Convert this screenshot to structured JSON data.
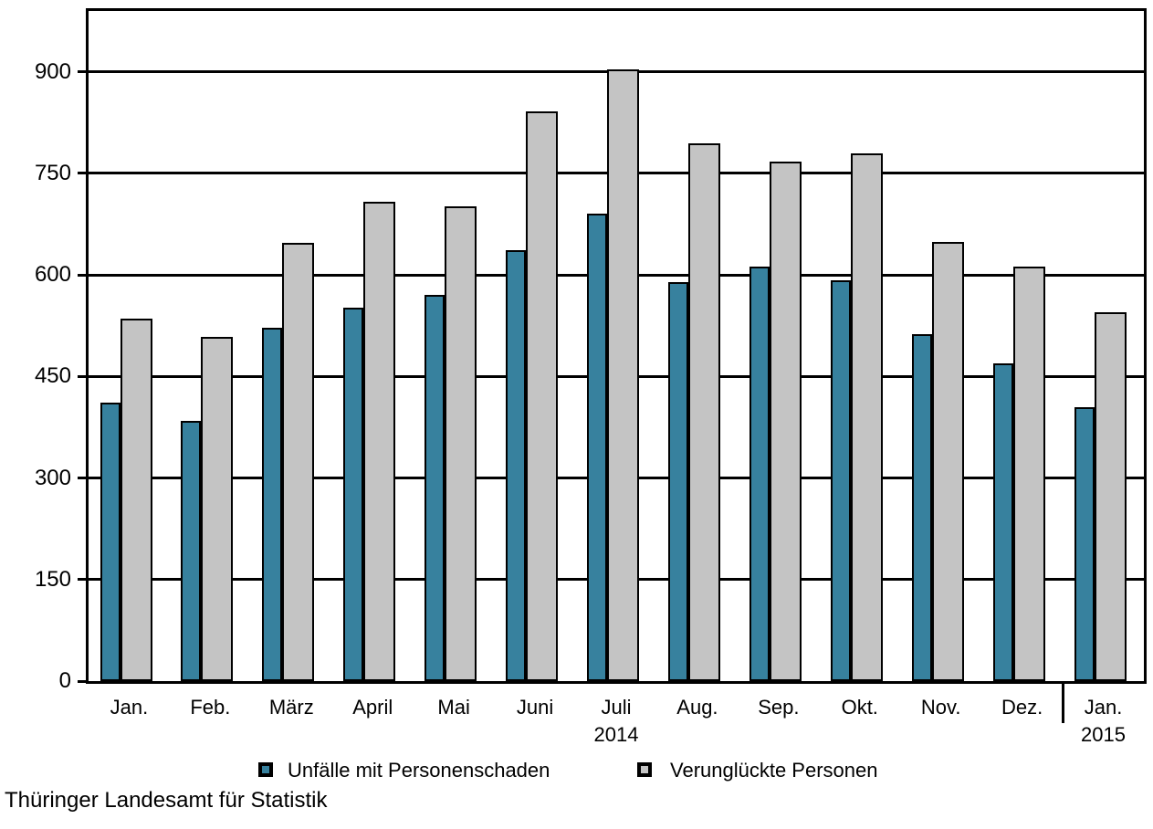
{
  "chart_data": {
    "type": "bar",
    "categories": [
      "Jan.",
      "Feb.",
      "März",
      "April",
      "Mai",
      "Juni",
      "Juli",
      "Aug.",
      "Sep.",
      "Okt.",
      "Nov.",
      "Dez.",
      "Jan."
    ],
    "year_labels": [
      {
        "index": 6,
        "label": "2014"
      },
      {
        "index": 12,
        "label": "2015"
      }
    ],
    "year_separator_after_index": 11,
    "series": [
      {
        "name": "Unfälle mit Personenschaden",
        "color": "#37819E",
        "values": [
          411,
          384,
          522,
          552,
          571,
          636,
          690,
          589,
          613,
          592,
          512,
          470,
          405
        ]
      },
      {
        "name": "Verunglückte Personen",
        "color": "#C4C4C4",
        "values": [
          535,
          508,
          648,
          708,
          702,
          842,
          904,
          794,
          768,
          779,
          649,
          613,
          545
        ]
      }
    ],
    "y_ticks": [
      0,
      150,
      300,
      450,
      600,
      750,
      900
    ],
    "ylim": [
      0,
      990
    ],
    "title": "",
    "xlabel": "",
    "ylabel": "",
    "grid": "horizontal",
    "legend_position": "bottom"
  },
  "source_note": "Thüringer Landesamt für Statistik"
}
